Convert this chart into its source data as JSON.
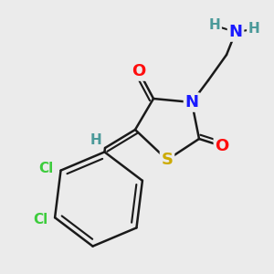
{
  "background_color": "#ebebeb",
  "atom_colors": {
    "C": "#1a1a1a",
    "N": "#1a1aff",
    "O": "#ff0d0d",
    "S": "#ccaa00",
    "Cl": "#3dcc3d",
    "H": "#4a9999"
  },
  "bond_color": "#1a1a1a",
  "bond_width": 1.8,
  "font_size": 13,
  "font_size_small": 11
}
